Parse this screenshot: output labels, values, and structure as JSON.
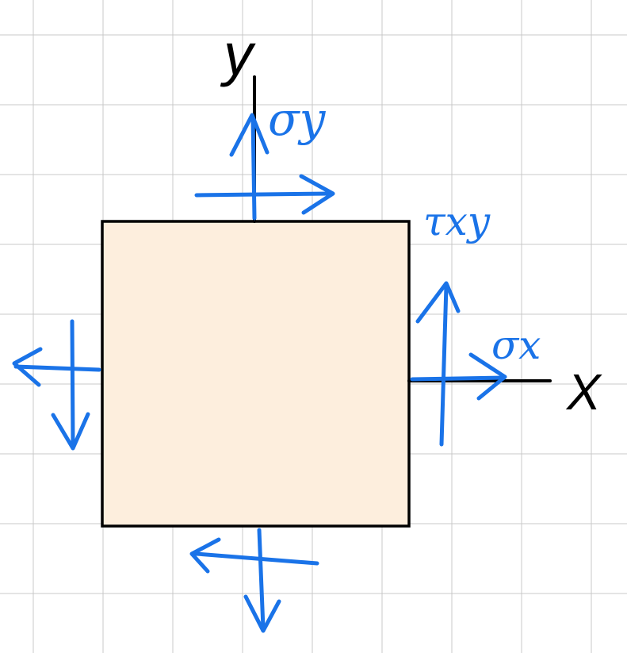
{
  "colors": {
    "background": "#ffffff",
    "grid": "#c8c8c8",
    "element_fill": "#fdeedd",
    "element_stroke": "#000000",
    "axis": "#000000",
    "stress_arrows": "#1a73e8"
  },
  "axes": {
    "x_label": "X",
    "y_label": "y"
  },
  "labels": {
    "sigma_x": "σx",
    "sigma_y": "σy",
    "tau_xy": "τxy"
  },
  "icons": {
    "arrowheads": "open-chevron"
  }
}
